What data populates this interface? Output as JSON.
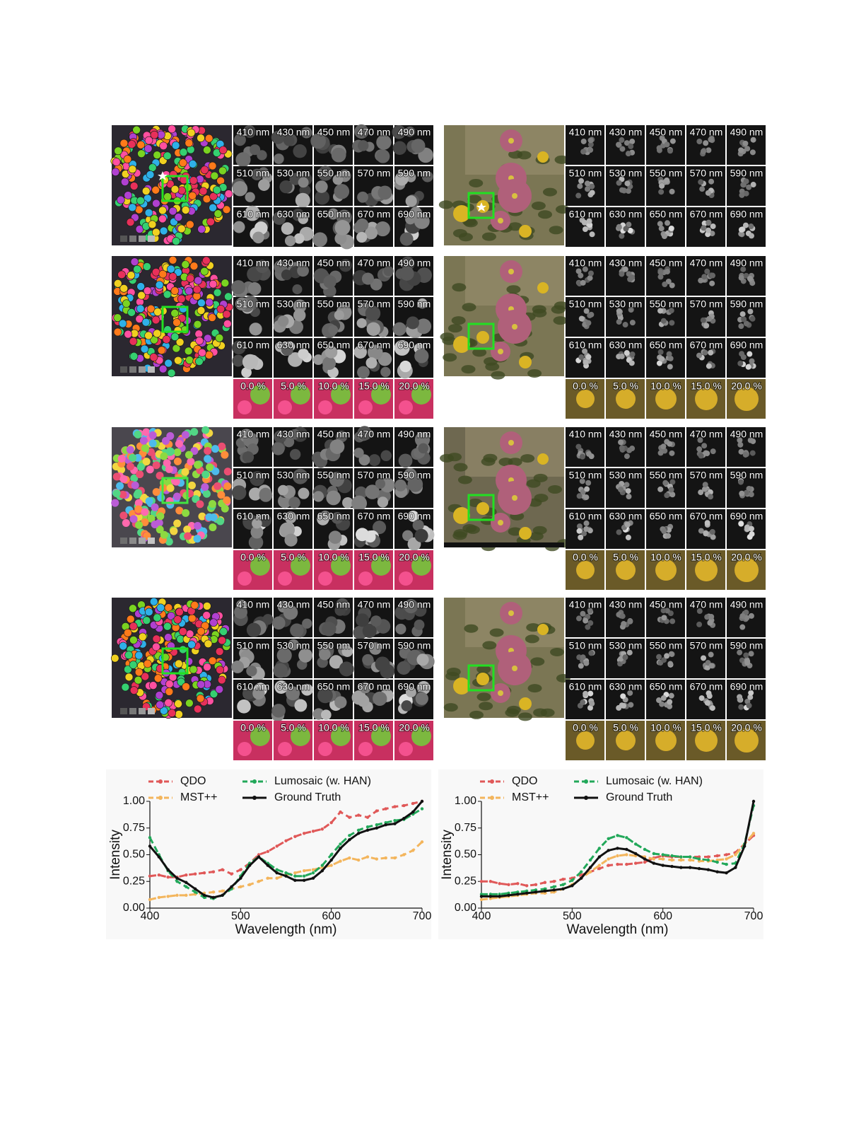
{
  "wavelength_labels": [
    "410 nm",
    "430 nm",
    "450 nm",
    "470 nm",
    "490 nm",
    "510 nm",
    "530 nm",
    "550 nm",
    "570 nm",
    "590 nm",
    "610 nm",
    "630 nm",
    "650 nm",
    "670 nm",
    "690 nm"
  ],
  "noise_labels": [
    "0.0 %",
    "5.0 %",
    "10.0 %",
    "15.0 %",
    "20.0 %"
  ],
  "chart_data": [
    {
      "type": "line",
      "xlabel": "Wavelength (nm)",
      "ylabel": "Intensity",
      "xlim": [
        400,
        700
      ],
      "ylim": [
        0,
        1
      ],
      "xticks": [
        400,
        500,
        600,
        700
      ],
      "yticks": [
        {
          "value": 0,
          "label": "0.00"
        },
        {
          "value": 0.25,
          "label": "0.25"
        },
        {
          "value": 0.5,
          "label": "0.50"
        },
        {
          "value": 0.75,
          "label": "0.75"
        },
        {
          "value": 1,
          "label": "1.00"
        }
      ],
      "x": [
        400,
        410,
        420,
        430,
        440,
        450,
        460,
        470,
        480,
        490,
        500,
        510,
        520,
        530,
        540,
        550,
        560,
        570,
        580,
        590,
        600,
        610,
        620,
        630,
        640,
        650,
        660,
        670,
        680,
        690,
        700
      ],
      "series": [
        {
          "name": "QDO",
          "color": "#e05858",
          "linestyle": "dashed",
          "values": [
            0.3,
            0.31,
            0.29,
            0.29,
            0.31,
            0.32,
            0.33,
            0.34,
            0.36,
            0.32,
            0.36,
            0.42,
            0.5,
            0.53,
            0.58,
            0.63,
            0.67,
            0.7,
            0.72,
            0.74,
            0.8,
            0.9,
            0.85,
            0.87,
            0.85,
            0.91,
            0.93,
            0.95,
            0.96,
            0.98,
            1.0
          ]
        },
        {
          "name": "MST++",
          "color": "#f3b55c",
          "linestyle": "dashed",
          "values": [
            0.08,
            0.1,
            0.11,
            0.12,
            0.12,
            0.13,
            0.14,
            0.15,
            0.16,
            0.18,
            0.2,
            0.22,
            0.25,
            0.28,
            0.28,
            0.31,
            0.33,
            0.35,
            0.36,
            0.38,
            0.4,
            0.44,
            0.47,
            0.45,
            0.48,
            0.46,
            0.47,
            0.47,
            0.5,
            0.54,
            0.62
          ]
        },
        {
          "name": "Lumosaic (w. HAN)",
          "color": "#22a85a",
          "linestyle": "dashed",
          "values": [
            0.66,
            0.5,
            0.35,
            0.25,
            0.2,
            0.15,
            0.1,
            0.09,
            0.12,
            0.18,
            0.3,
            0.42,
            0.48,
            0.42,
            0.36,
            0.33,
            0.3,
            0.3,
            0.33,
            0.4,
            0.5,
            0.6,
            0.68,
            0.73,
            0.76,
            0.78,
            0.8,
            0.82,
            0.83,
            0.88,
            0.93
          ]
        },
        {
          "name": "Ground Truth",
          "color": "#111111",
          "linestyle": "solid",
          "values": [
            0.58,
            0.48,
            0.36,
            0.28,
            0.24,
            0.18,
            0.12,
            0.1,
            0.12,
            0.2,
            0.28,
            0.4,
            0.48,
            0.4,
            0.33,
            0.3,
            0.26,
            0.26,
            0.28,
            0.35,
            0.45,
            0.56,
            0.64,
            0.7,
            0.73,
            0.75,
            0.78,
            0.79,
            0.84,
            0.9,
            1.0
          ]
        }
      ]
    },
    {
      "type": "line",
      "xlabel": "Wavelength (nm)",
      "ylabel": "Intensity",
      "xlim": [
        400,
        700
      ],
      "ylim": [
        0,
        1
      ],
      "xticks": [
        400,
        500,
        600,
        700
      ],
      "yticks": [
        {
          "value": 0,
          "label": "0.00"
        },
        {
          "value": 0.25,
          "label": "0.25"
        },
        {
          "value": 0.5,
          "label": "0.50"
        },
        {
          "value": 0.75,
          "label": "0.75"
        },
        {
          "value": 1,
          "label": "1.00"
        }
      ],
      "x": [
        400,
        410,
        420,
        430,
        440,
        450,
        460,
        470,
        480,
        490,
        500,
        510,
        520,
        530,
        540,
        550,
        560,
        570,
        580,
        590,
        600,
        610,
        620,
        630,
        640,
        650,
        660,
        670,
        680,
        690,
        700
      ],
      "series": [
        {
          "name": "QDO",
          "color": "#e05858",
          "linestyle": "dashed",
          "values": [
            0.25,
            0.25,
            0.23,
            0.22,
            0.23,
            0.21,
            0.22,
            0.24,
            0.25,
            0.27,
            0.28,
            0.31,
            0.34,
            0.37,
            0.4,
            0.41,
            0.41,
            0.42,
            0.43,
            0.47,
            0.49,
            0.48,
            0.48,
            0.48,
            0.48,
            0.48,
            0.49,
            0.5,
            0.52,
            0.6,
            0.68
          ]
        },
        {
          "name": "MST++",
          "color": "#f3b55c",
          "linestyle": "dashed",
          "values": [
            0.08,
            0.09,
            0.1,
            0.11,
            0.12,
            0.13,
            0.14,
            0.14,
            0.15,
            0.18,
            0.22,
            0.28,
            0.34,
            0.4,
            0.46,
            0.49,
            0.5,
            0.49,
            0.48,
            0.46,
            0.46,
            0.45,
            0.45,
            0.45,
            0.44,
            0.44,
            0.45,
            0.46,
            0.5,
            0.6,
            0.7
          ]
        },
        {
          "name": "Lumosaic (w. HAN)",
          "color": "#22a85a",
          "linestyle": "dashed",
          "values": [
            0.13,
            0.13,
            0.13,
            0.14,
            0.15,
            0.16,
            0.17,
            0.18,
            0.2,
            0.22,
            0.26,
            0.34,
            0.45,
            0.56,
            0.65,
            0.68,
            0.66,
            0.6,
            0.55,
            0.51,
            0.5,
            0.49,
            0.48,
            0.48,
            0.46,
            0.45,
            0.43,
            0.41,
            0.42,
            0.6,
            0.96
          ]
        },
        {
          "name": "Ground Truth",
          "color": "#111111",
          "linestyle": "solid",
          "values": [
            0.11,
            0.11,
            0.11,
            0.12,
            0.13,
            0.14,
            0.15,
            0.16,
            0.17,
            0.18,
            0.21,
            0.28,
            0.38,
            0.48,
            0.54,
            0.56,
            0.55,
            0.51,
            0.46,
            0.42,
            0.4,
            0.39,
            0.38,
            0.38,
            0.37,
            0.36,
            0.34,
            0.33,
            0.38,
            0.58,
            1.0
          ]
        }
      ]
    }
  ]
}
